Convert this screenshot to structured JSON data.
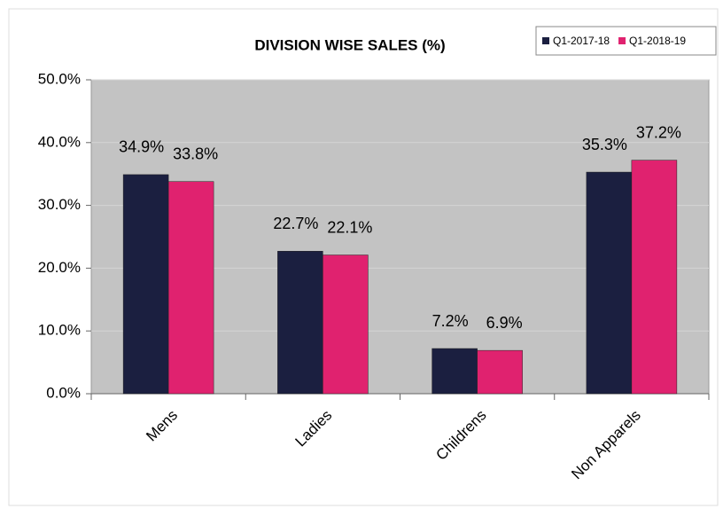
{
  "chart_data": {
    "type": "bar",
    "title": "DIVISION WISE SALES (%)",
    "categories": [
      "Mens",
      "Ladies",
      "Childrens",
      "Non Apparels"
    ],
    "series": [
      {
        "name": "Q1-2017-18",
        "color": "#1b1f40",
        "values": [
          34.9,
          22.7,
          7.2,
          35.3
        ],
        "value_labels": [
          "34.9%",
          "22.7%",
          "7.2%",
          "35.3%"
        ]
      },
      {
        "name": "Q1-2018-19",
        "color": "#e0226f",
        "values": [
          33.8,
          22.1,
          6.9,
          37.2
        ],
        "value_labels": [
          "33.8%",
          "22.1%",
          "6.9%",
          "37.2%"
        ]
      }
    ],
    "ylim": [
      0,
      50
    ],
    "yticks": [
      {
        "value": 0,
        "label": "0.0%"
      },
      {
        "value": 10,
        "label": "10.0%"
      },
      {
        "value": 20,
        "label": "20.0%"
      },
      {
        "value": 30,
        "label": "30.0%"
      },
      {
        "value": 40,
        "label": "40.0%"
      },
      {
        "value": 50,
        "label": "50.0%"
      }
    ],
    "grid": true,
    "legend": "top-right"
  }
}
